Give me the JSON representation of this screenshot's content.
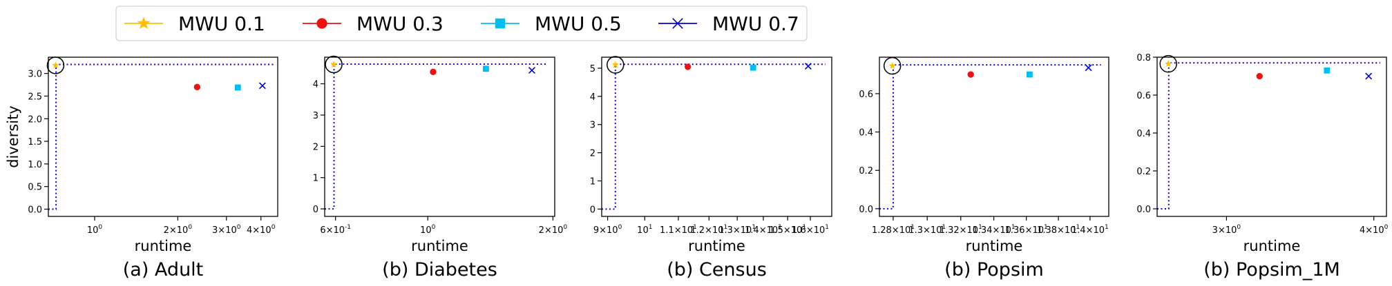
{
  "legend": {
    "entries": [
      {
        "label": "MWU 0.1",
        "color": "#FFC000",
        "marker": "star"
      },
      {
        "label": "MWU 0.3",
        "color": "#EE1111",
        "marker": "circle"
      },
      {
        "label": "MWU 0.5",
        "color": "#00BFEF",
        "marker": "square"
      },
      {
        "label": "MWU 0.7",
        "color": "#0000CC",
        "marker": "x"
      }
    ]
  },
  "chart_data": [
    {
      "type": "scatter",
      "caption": "(a) Adult",
      "xlabel": "runtime",
      "ylabel": "diversity",
      "xscale": "log",
      "xlim": [
        0.68,
        4.6
      ],
      "ylim": [
        -0.16,
        3.36
      ],
      "xticks": [
        {
          "v": 1.0,
          "label": "10^0"
        },
        {
          "v": 2.0,
          "label": "2×10^0"
        },
        {
          "v": 3.0,
          "label": "3×10^0"
        },
        {
          "v": 4.0,
          "label": "4×10^0"
        }
      ],
      "yticks": [
        {
          "v": 0.0,
          "label": "0.0"
        },
        {
          "v": 0.5,
          "label": "0.5"
        },
        {
          "v": 1.0,
          "label": "1.0"
        },
        {
          "v": 1.5,
          "label": "1.5"
        },
        {
          "v": 2.0,
          "label": "2.0"
        },
        {
          "v": 2.5,
          "label": "2.5"
        },
        {
          "v": 3.0,
          "label": "3.0"
        }
      ],
      "frontier": {
        "x_left": 0.68,
        "x_vert": 0.725,
        "y_bottom": 0.0,
        "y_top": 3.2,
        "x_right": 4.45
      },
      "series": [
        {
          "name": "MWU 0.1",
          "points": [
            [
              0.722,
              3.18
            ]
          ]
        },
        {
          "name": "MWU 0.3",
          "points": [
            [
              2.35,
              2.7
            ]
          ]
        },
        {
          "name": "MWU 0.5",
          "points": [
            [
              3.3,
              2.69
            ]
          ]
        },
        {
          "name": "MWU 0.7",
          "points": [
            [
              4.05,
              2.73
            ]
          ]
        }
      ],
      "circled": [
        0.722,
        3.18
      ]
    },
    {
      "type": "scatter",
      "caption": "(b) Diabetes",
      "xlabel": "runtime",
      "ylabel": "",
      "xscale": "log",
      "xlim": [
        0.565,
        2.02
      ],
      "ylim": [
        -0.24,
        4.85
      ],
      "xticks": [
        {
          "v": 0.6,
          "label": "6×10^-1"
        },
        {
          "v": 1.0,
          "label": "10^0"
        },
        {
          "v": 2.0,
          "label": "2×10^0"
        }
      ],
      "yticks": [
        {
          "v": 0,
          "label": "0"
        },
        {
          "v": 1,
          "label": "1"
        },
        {
          "v": 2,
          "label": "2"
        },
        {
          "v": 3,
          "label": "3"
        },
        {
          "v": 4,
          "label": "4"
        }
      ],
      "frontier": {
        "x_left": 0.565,
        "x_vert": 0.595,
        "y_bottom": 0.0,
        "y_top": 4.63,
        "x_right": 1.93
      },
      "series": [
        {
          "name": "MWU 0.1",
          "points": [
            [
              0.594,
              4.62
            ]
          ]
        },
        {
          "name": "MWU 0.3",
          "points": [
            [
              1.03,
              4.38
            ]
          ]
        },
        {
          "name": "MWU 0.5",
          "points": [
            [
              1.38,
              4.48
            ]
          ]
        },
        {
          "name": "MWU 0.7",
          "points": [
            [
              1.78,
              4.43
            ]
          ]
        }
      ],
      "circled": [
        0.594,
        4.62
      ]
    },
    {
      "type": "scatter",
      "caption": "(b) Census",
      "xlabel": "runtime",
      "ylabel": "",
      "xscale": "log",
      "xlim": [
        8.85,
        17.0
      ],
      "ylim": [
        -0.26,
        5.39
      ],
      "xticks": [
        {
          "v": 9,
          "label": "9×10^0"
        },
        {
          "v": 10,
          "label": "10^1"
        },
        {
          "v": 11,
          "label": "1.1×10^1"
        },
        {
          "v": 12,
          "label": "1.2×10^1"
        },
        {
          "v": 13,
          "label": "1.3×10^1"
        },
        {
          "v": 14,
          "label": "1.4×10^1"
        },
        {
          "v": 15,
          "label": "1.5×10^1"
        },
        {
          "v": 16,
          "label": "1.6×10^1"
        }
      ],
      "yticks": [
        {
          "v": 0,
          "label": "0"
        },
        {
          "v": 1,
          "label": "1"
        },
        {
          "v": 2,
          "label": "2"
        },
        {
          "v": 3,
          "label": "3"
        },
        {
          "v": 4,
          "label": "4"
        },
        {
          "v": 5,
          "label": "5"
        }
      ],
      "frontier": {
        "x_left": 8.85,
        "x_vert": 9.2,
        "y_bottom": 0.0,
        "y_top": 5.14,
        "x_right": 16.7
      },
      "series": [
        {
          "name": "MWU 0.1",
          "points": [
            [
              9.2,
              5.12
            ]
          ]
        },
        {
          "name": "MWU 0.3",
          "points": [
            [
              11.3,
              5.05
            ]
          ]
        },
        {
          "name": "MWU 0.5",
          "points": [
            [
              13.6,
              5.02
            ]
          ]
        },
        {
          "name": "MWU 0.7",
          "points": [
            [
              15.9,
              5.07
            ]
          ]
        }
      ],
      "circled": [
        9.2,
        5.12
      ]
    },
    {
      "type": "scatter",
      "caption": "(b) Popsim",
      "xlabel": "runtime",
      "ylabel": "",
      "xscale": "log",
      "xlim": [
        12.72,
        14.12
      ],
      "ylim": [
        -0.04,
        0.79
      ],
      "xticks": [
        {
          "v": 12.8,
          "label": "1.28×10^1"
        },
        {
          "v": 13.0,
          "label": "1.3×10^1"
        },
        {
          "v": 13.2,
          "label": "1.32×10^1"
        },
        {
          "v": 13.4,
          "label": "1.34×10^1"
        },
        {
          "v": 13.6,
          "label": "1.36×10^1"
        },
        {
          "v": 13.8,
          "label": "1.38×10^1"
        },
        {
          "v": 14.0,
          "label": "1.4×10^1"
        }
      ],
      "yticks": [
        {
          "v": 0.0,
          "label": "0.0"
        },
        {
          "v": 0.2,
          "label": "0.2"
        },
        {
          "v": 0.4,
          "label": "0.4"
        },
        {
          "v": 0.6,
          "label": "0.6"
        }
      ],
      "frontier": {
        "x_left": 12.72,
        "x_vert": 12.8,
        "y_bottom": 0.0,
        "y_top": 0.75,
        "x_right": 14.07
      },
      "series": [
        {
          "name": "MWU 0.1",
          "points": [
            [
              12.795,
              0.745
            ]
          ]
        },
        {
          "name": "MWU 0.3",
          "points": [
            [
              13.26,
              0.7
            ]
          ]
        },
        {
          "name": "MWU 0.5",
          "points": [
            [
              13.62,
              0.7
            ]
          ]
        },
        {
          "name": "MWU 0.7",
          "points": [
            [
              13.99,
              0.735
            ]
          ]
        }
      ],
      "circled": [
        12.795,
        0.745
      ]
    },
    {
      "type": "scatter",
      "caption": "(b) Popsim_1M",
      "xlabel": "runtime",
      "ylabel": "",
      "xscale": "log",
      "xlim": [
        2.62,
        4.1
      ],
      "ylim": [
        -0.04,
        0.8
      ],
      "xticks": [
        {
          "v": 3.0,
          "label": "3×10^0"
        },
        {
          "v": 4.0,
          "label": "4×10^0"
        }
      ],
      "yticks": [
        {
          "v": 0.0,
          "label": "0.0"
        },
        {
          "v": 0.2,
          "label": "0.2"
        },
        {
          "v": 0.4,
          "label": "0.4"
        },
        {
          "v": 0.6,
          "label": "0.6"
        },
        {
          "v": 0.8,
          "label": "0.8"
        }
      ],
      "frontier": {
        "x_left": 2.62,
        "x_vert": 2.68,
        "y_bottom": 0.0,
        "y_top": 0.77,
        "x_right": 4.05
      },
      "series": [
        {
          "name": "MWU 0.1",
          "points": [
            [
              2.678,
              0.765
            ]
          ]
        },
        {
          "name": "MWU 0.3",
          "points": [
            [
              3.2,
              0.7
            ]
          ]
        },
        {
          "name": "MWU 0.5",
          "points": [
            [
              3.65,
              0.73
            ]
          ]
        },
        {
          "name": "MWU 0.7",
          "points": [
            [
              3.96,
              0.7
            ]
          ]
        }
      ],
      "circled": [
        2.678,
        0.765
      ]
    }
  ]
}
